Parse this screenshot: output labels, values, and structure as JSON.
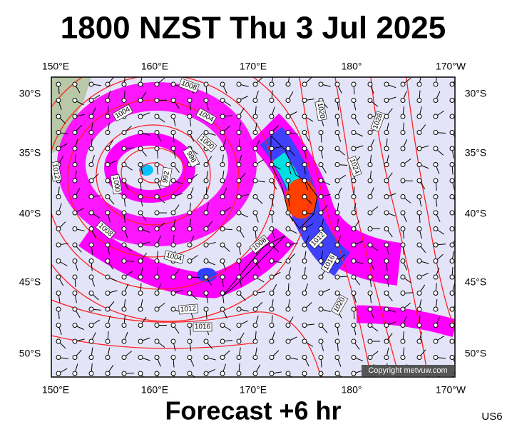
{
  "title": "1800 NZST Thu 3 Jul 2025",
  "footer": "Forecast +6 hr",
  "model": "US6",
  "copyright": "Copyright metvuw.com",
  "lon_labels": [
    "150°E",
    "160°E",
    "170°E",
    "180°",
    "170°W"
  ],
  "lat_labels": [
    "30°S",
    "35°S",
    "40°S",
    "45°S",
    "50°S"
  ],
  "isobar_labels": [
    "1008",
    "1004",
    "1004",
    "1000",
    "996",
    "992",
    "1000",
    "1008",
    "1004",
    "1012",
    "1012",
    "1016",
    "1008",
    "1012",
    "1016",
    "1020",
    "1024",
    "1028",
    "1020"
  ]
}
